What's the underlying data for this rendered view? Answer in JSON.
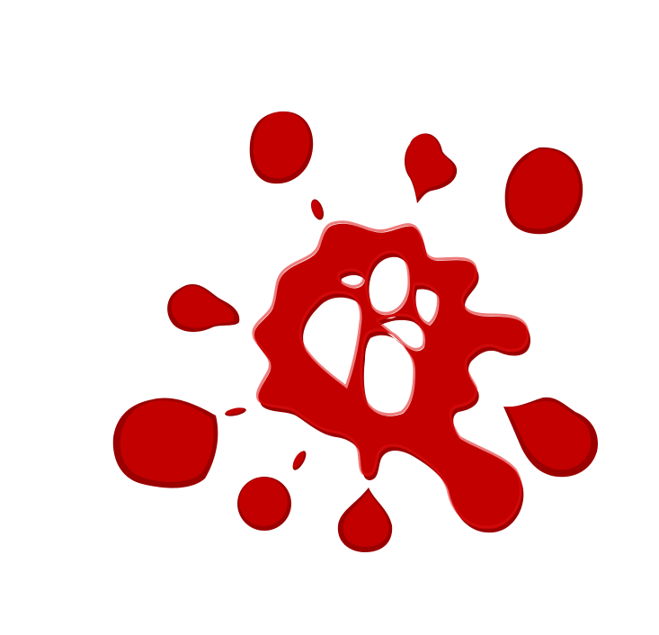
{
  "scene": {
    "subject": "blood-splatter",
    "background_color": "#ffffff",
    "colors": {
      "main": "#c20000",
      "shade": "#9a0000",
      "highlight": "#dc1010"
    }
  }
}
